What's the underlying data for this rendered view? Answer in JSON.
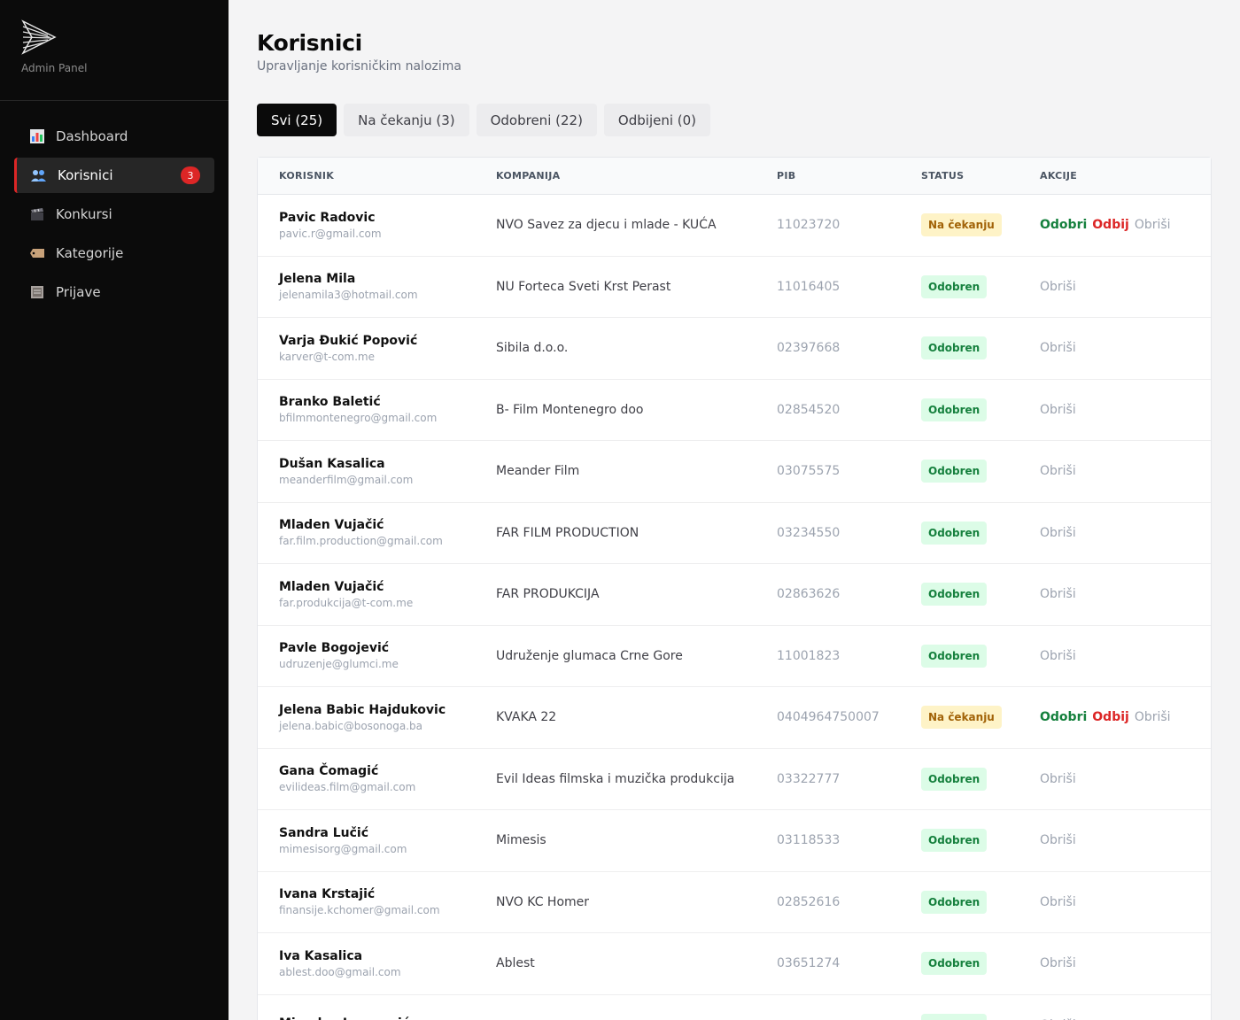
{
  "sidebar": {
    "brand_subtitle": "Admin Panel",
    "items": [
      {
        "label": "Dashboard",
        "icon": "chart-icon"
      },
      {
        "label": "Korisnici",
        "icon": "users-icon",
        "badge": "3"
      },
      {
        "label": "Konkursi",
        "icon": "clapperboard-icon"
      },
      {
        "label": "Kategorije",
        "icon": "tag-icon"
      },
      {
        "label": "Prijave",
        "icon": "document-icon"
      }
    ]
  },
  "header": {
    "title": "Korisnici",
    "subtitle": "Upravljanje korisničkim nalozima"
  },
  "tabs": [
    {
      "label": "Svi (25)"
    },
    {
      "label": "Na čekanju (3)"
    },
    {
      "label": "Odobreni (22)"
    },
    {
      "label": "Odbijeni (0)"
    }
  ],
  "table": {
    "columns": [
      "KORISNIK",
      "KOMPANIJA",
      "PIB",
      "STATUS",
      "AKCIJE"
    ],
    "actions": {
      "approve": "Odobri",
      "reject": "Odbij",
      "delete": "Obriši"
    },
    "rows": [
      {
        "name": "Pavic Radovic",
        "email": "pavic.r@gmail.com",
        "company": "NVO Savez za djecu i mlade - KUĆA",
        "pib": "11023720",
        "status": "Na čekanju",
        "pending": true
      },
      {
        "name": "Jelena Mila",
        "email": "jelenamila3@hotmail.com",
        "company": "NU Forteca Sveti Krst Perast",
        "pib": "11016405",
        "status": "Odobren",
        "pending": false
      },
      {
        "name": "Varja Đukić Popović",
        "email": "karver@t-com.me",
        "company": "Sibila d.o.o.",
        "pib": "02397668",
        "status": "Odobren",
        "pending": false
      },
      {
        "name": "Branko Baletić",
        "email": "bfilmmontenegro@gmail.com",
        "company": "B- Film Montenegro doo",
        "pib": "02854520",
        "status": "Odobren",
        "pending": false
      },
      {
        "name": "Dušan Kasalica",
        "email": "meanderfilm@gmail.com",
        "company": "Meander Film",
        "pib": "03075575",
        "status": "Odobren",
        "pending": false
      },
      {
        "name": "Mladen Vujačić",
        "email": "far.film.production@gmail.com",
        "company": "FAR FILM PRODUCTION",
        "pib": "03234550",
        "status": "Odobren",
        "pending": false
      },
      {
        "name": "Mladen Vujačić",
        "email": "far.produkcija@t-com.me",
        "company": "FAR PRODUKCIJA",
        "pib": "02863626",
        "status": "Odobren",
        "pending": false
      },
      {
        "name": "Pavle Bogojević",
        "email": "udruzenje@glumci.me",
        "company": "Udruženje glumaca Crne Gore",
        "pib": "11001823",
        "status": "Odobren",
        "pending": false
      },
      {
        "name": "Jelena Babic Hajdukovic",
        "email": "jelena.babic@bosonoga.ba",
        "company": "KVAKA 22",
        "pib": "0404964750007",
        "status": "Na čekanju",
        "pending": true
      },
      {
        "name": "Gana Čomagić",
        "email": "evilideas.film@gmail.com",
        "company": "Evil Ideas filmska i muzička produkcija",
        "pib": "03322777",
        "status": "Odobren",
        "pending": false
      },
      {
        "name": "Sandra Lučić",
        "email": "mimesisorg@gmail.com",
        "company": "Mimesis",
        "pib": "03118533",
        "status": "Odobren",
        "pending": false
      },
      {
        "name": "Ivana Krstajić",
        "email": "finansije.kchomer@gmail.com",
        "company": "NVO KC Homer",
        "pib": "02852616",
        "status": "Odobren",
        "pending": false
      },
      {
        "name": "Iva Kasalica",
        "email": "ablest.doo@gmail.com",
        "company": "Ablest",
        "pib": "03651274",
        "status": "Odobren",
        "pending": false
      },
      {
        "name": "Miroslav Jovanović",
        "email": "",
        "company": "",
        "pib": "",
        "status": "Odobren",
        "pending": false
      }
    ]
  }
}
